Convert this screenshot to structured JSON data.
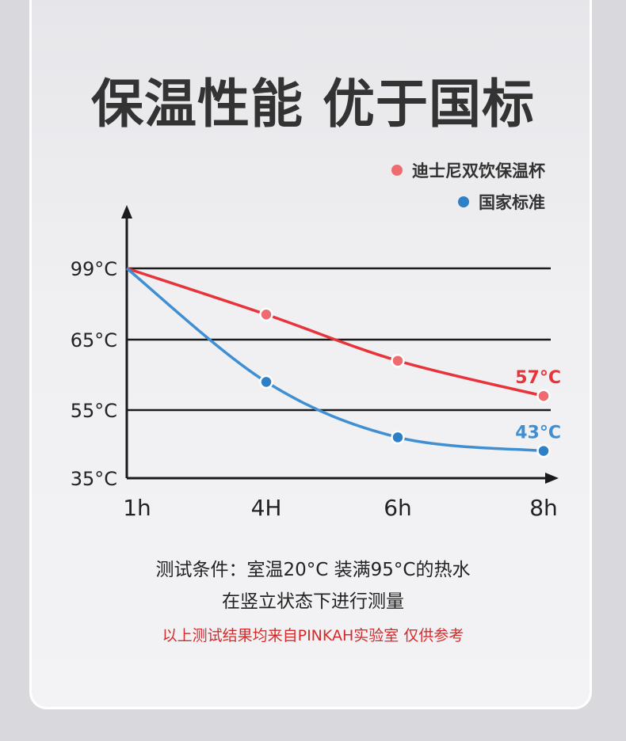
{
  "title": "保温性能 优于国标",
  "chart_data": {
    "type": "line",
    "categories": [
      "1h",
      "4H",
      "6h",
      "8h"
    ],
    "y_tick_labels": [
      "99°C",
      "65°C",
      "55°C",
      "35°C"
    ],
    "series": [
      {
        "name": "迪士尼双饮保温杯",
        "color": "#e8333a",
        "marker_color": "#ee6b6f",
        "values": [
          99,
          77,
          62,
          57
        ],
        "end_label": "57°C"
      },
      {
        "name": "国家标准",
        "color": "#3f8fd2",
        "marker_color": "#2f7fc6",
        "values": [
          99,
          59,
          47,
          43
        ],
        "end_label": "43°C"
      }
    ],
    "grid": true,
    "legend_position": "top-right"
  },
  "conditions": {
    "line1": "测试条件：室温20°C 装满95°C的热水",
    "line2": "在竖立状态下进行测量"
  },
  "note": "以上测试结果均来自PINKAH实验室 仅供参考"
}
